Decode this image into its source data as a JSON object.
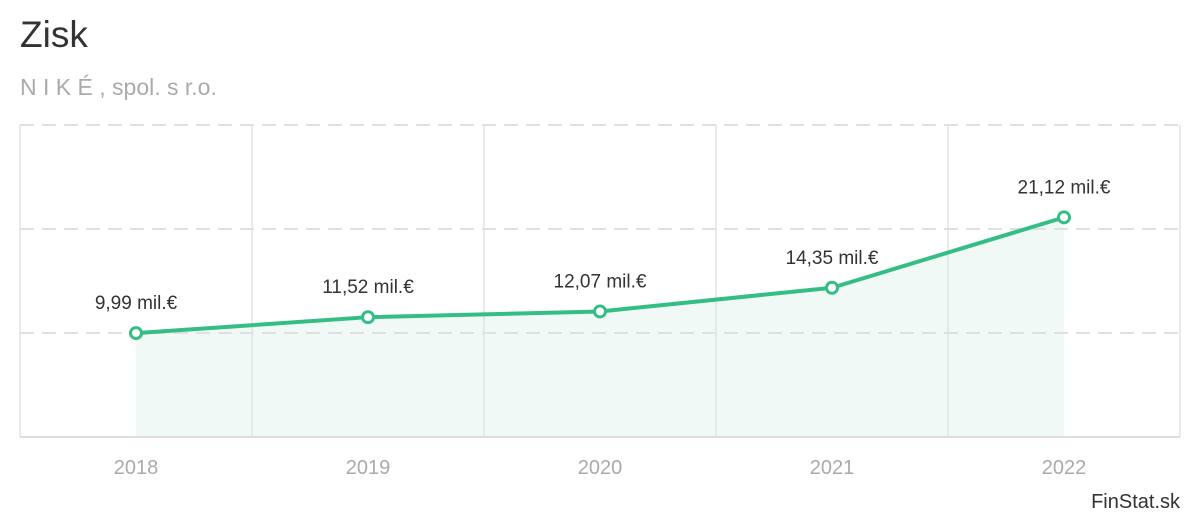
{
  "title": "Zisk",
  "subtitle": "N I K É , spol. s r.o.",
  "credit": "FinStat.sk",
  "chart_data": {
    "type": "area",
    "title": "Zisk",
    "subtitle": "N I K É , spol. s r.o.",
    "categories": [
      "2018",
      "2019",
      "2020",
      "2021",
      "2022"
    ],
    "values": [
      9.99,
      11.52,
      12.07,
      14.35,
      21.12
    ],
    "labels": [
      "9,99 mil.€",
      "11,52 mil.€",
      "12,07 mil.€",
      "14,35 mil.€",
      "21,12 mil.€"
    ],
    "ylim": [
      0,
      30
    ],
    "ygrid": [
      10,
      20,
      30
    ],
    "unit": "mil.€",
    "grid": true,
    "legend": "none",
    "colors": {
      "line": "#34be85",
      "fill": "#f0f9f5",
      "grid": "#e3e3e3"
    }
  }
}
